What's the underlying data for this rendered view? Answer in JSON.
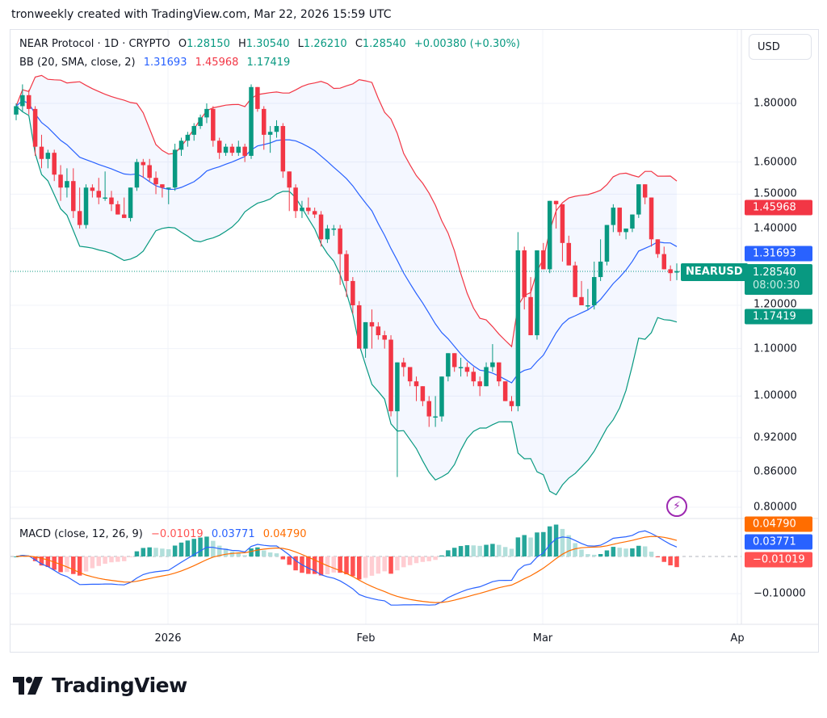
{
  "header": {
    "caption": "tronweekly created with TradingView.com, Mar 22, 2026 15:59 UTC"
  },
  "legend": {
    "symbol": "NEAR Protocol · 1D · CRYPTO",
    "open_label": "O",
    "open": "1.28150",
    "high_label": "H",
    "high": "1.30540",
    "low_label": "L",
    "low": "1.26210",
    "close_label": "C",
    "close": "1.28540",
    "change": "+0.00380 (+0.30%)",
    "bb_label": "BB (20, SMA, close, 2)",
    "bb_basis": "1.31693",
    "bb_upper": "1.45968",
    "bb_lower": "1.17419",
    "macd_label": "MACD (close, 12, 26, 9)",
    "macd_hist": "−0.01019",
    "macd_line": "0.03771",
    "macd_signal": "0.04790"
  },
  "toolbar": {
    "currency_button": "USD"
  },
  "price_axis": {
    "ticks": [
      "1.80000",
      "1.60000",
      "1.50000",
      "1.40000",
      "1.20000",
      "1.10000",
      "1.00000",
      "0.92000",
      "0.86000",
      "0.80000"
    ],
    "badges": {
      "bb_upper": "1.45968",
      "bb_basis": "1.31693",
      "last_price": "1.28540",
      "countdown": "08:00:30",
      "bb_lower": "1.17419"
    },
    "symbol_label": "NEARUSD"
  },
  "macd_axis": {
    "ticks": [
      "−0.10000"
    ],
    "badges": {
      "signal": "0.04790",
      "macd": "0.03771",
      "hist": "−0.01019"
    }
  },
  "time_axis": {
    "labels": [
      "2026",
      "Feb",
      "Mar",
      "Ap"
    ]
  },
  "branding": {
    "logo_text": "TradingView"
  },
  "colors": {
    "up": "#089981",
    "down": "#f23645",
    "bb_basis": "#2962ff",
    "bb_upper": "#f23645",
    "bb_lower": "#089981",
    "macd_line": "#2962ff",
    "signal_line": "#ff6d00",
    "hist_up_strong": "#26a69a",
    "hist_up_weak": "#b2dfdb",
    "hist_down_strong": "#ff5252",
    "hist_down_weak": "#ffcdd2"
  },
  "chart_data": [
    {
      "type": "candlestick",
      "title": "NEAR Protocol · 1D · CRYPTO",
      "xlabel": "",
      "ylabel": "USD",
      "y_scale": "log",
      "ylim": [
        0.78,
        2.0
      ],
      "x_ticks": [
        "2026",
        "Feb",
        "Mar",
        "Ap"
      ],
      "y_ticks": [
        1.8,
        1.6,
        1.5,
        1.4,
        1.2,
        1.1,
        1.0,
        0.92,
        0.86,
        0.8
      ],
      "ohlc": [
        [
          1.76,
          1.8,
          1.74,
          1.79
        ],
        [
          1.79,
          1.87,
          1.77,
          1.83
        ],
        [
          1.83,
          1.85,
          1.76,
          1.78
        ],
        [
          1.78,
          1.79,
          1.62,
          1.65
        ],
        [
          1.65,
          1.69,
          1.58,
          1.61
        ],
        [
          1.61,
          1.64,
          1.58,
          1.63
        ],
        [
          1.63,
          1.64,
          1.54,
          1.56
        ],
        [
          1.56,
          1.59,
          1.48,
          1.52
        ],
        [
          1.52,
          1.58,
          1.49,
          1.54
        ],
        [
          1.54,
          1.58,
          1.43,
          1.45
        ],
        [
          1.45,
          1.52,
          1.4,
          1.41
        ],
        [
          1.41,
          1.53,
          1.4,
          1.52
        ],
        [
          1.52,
          1.53,
          1.49,
          1.51
        ],
        [
          1.51,
          1.55,
          1.47,
          1.49
        ],
        [
          1.49,
          1.57,
          1.48,
          1.49
        ],
        [
          1.49,
          1.51,
          1.45,
          1.47
        ],
        [
          1.47,
          1.48,
          1.44,
          1.44
        ],
        [
          1.44,
          1.49,
          1.43,
          1.43
        ],
        [
          1.43,
          1.52,
          1.42,
          1.52
        ],
        [
          1.52,
          1.61,
          1.51,
          1.6
        ],
        [
          1.6,
          1.61,
          1.55,
          1.59
        ],
        [
          1.59,
          1.61,
          1.54,
          1.55
        ],
        [
          1.55,
          1.57,
          1.5,
          1.53
        ],
        [
          1.53,
          1.53,
          1.49,
          1.52
        ],
        [
          1.52,
          1.52,
          1.47,
          1.52
        ],
        [
          1.52,
          1.66,
          1.51,
          1.64
        ],
        [
          1.64,
          1.68,
          1.62,
          1.67
        ],
        [
          1.67,
          1.7,
          1.65,
          1.69
        ],
        [
          1.69,
          1.73,
          1.67,
          1.72
        ],
        [
          1.72,
          1.76,
          1.71,
          1.75
        ],
        [
          1.75,
          1.8,
          1.73,
          1.78
        ],
        [
          1.78,
          1.79,
          1.65,
          1.67
        ],
        [
          1.67,
          1.68,
          1.61,
          1.63
        ],
        [
          1.63,
          1.66,
          1.62,
          1.65
        ],
        [
          1.65,
          1.66,
          1.62,
          1.63
        ],
        [
          1.63,
          1.67,
          1.62,
          1.65
        ],
        [
          1.65,
          1.66,
          1.6,
          1.62
        ],
        [
          1.62,
          1.87,
          1.61,
          1.86
        ],
        [
          1.86,
          1.86,
          1.77,
          1.78
        ],
        [
          1.78,
          1.79,
          1.64,
          1.69
        ],
        [
          1.69,
          1.72,
          1.63,
          1.7
        ],
        [
          1.7,
          1.74,
          1.68,
          1.72
        ],
        [
          1.72,
          1.73,
          1.55,
          1.57
        ],
        [
          1.57,
          1.57,
          1.45,
          1.52
        ],
        [
          1.52,
          1.53,
          1.43,
          1.45
        ],
        [
          1.45,
          1.48,
          1.43,
          1.46
        ],
        [
          1.46,
          1.49,
          1.44,
          1.45
        ],
        [
          1.45,
          1.46,
          1.43,
          1.44
        ],
        [
          1.44,
          1.45,
          1.35,
          1.37
        ],
        [
          1.37,
          1.41,
          1.36,
          1.4
        ],
        [
          1.4,
          1.41,
          1.38,
          1.4
        ],
        [
          1.4,
          1.41,
          1.25,
          1.33
        ],
        [
          1.33,
          1.34,
          1.22,
          1.26
        ],
        [
          1.26,
          1.27,
          1.18,
          1.2
        ],
        [
          1.2,
          1.21,
          1.1,
          1.1
        ],
        [
          1.1,
          1.15,
          1.08,
          1.16
        ],
        [
          1.16,
          1.19,
          1.1,
          1.15
        ],
        [
          1.15,
          1.16,
          1.12,
          1.13
        ],
        [
          1.13,
          1.14,
          1.1,
          1.12
        ],
        [
          1.12,
          1.13,
          0.96,
          0.97
        ],
        [
          0.97,
          1.07,
          0.85,
          1.07
        ],
        [
          1.07,
          1.08,
          1.04,
          1.06
        ],
        [
          1.06,
          1.06,
          1.02,
          1.03
        ],
        [
          1.03,
          1.04,
          0.99,
          1.02
        ],
        [
          1.02,
          1.02,
          0.98,
          0.99
        ],
        [
          0.99,
          1.0,
          0.94,
          0.96
        ],
        [
          0.96,
          1.0,
          0.94,
          0.96
        ],
        [
          0.96,
          1.04,
          0.95,
          1.04
        ],
        [
          1.04,
          1.09,
          1.03,
          1.09
        ],
        [
          1.09,
          1.09,
          1.05,
          1.06
        ],
        [
          1.06,
          1.08,
          1.04,
          1.06
        ],
        [
          1.06,
          1.07,
          1.04,
          1.05
        ],
        [
          1.05,
          1.06,
          1.02,
          1.03
        ],
        [
          1.03,
          1.04,
          1.0,
          1.02
        ],
        [
          1.02,
          1.07,
          1.02,
          1.06
        ],
        [
          1.06,
          1.11,
          1.05,
          1.07
        ],
        [
          1.07,
          1.07,
          1.02,
          1.03
        ],
        [
          1.03,
          1.03,
          0.99,
          0.99
        ],
        [
          0.99,
          1.0,
          0.97,
          0.98
        ],
        [
          0.98,
          1.39,
          0.97,
          1.34
        ],
        [
          1.34,
          1.35,
          1.19,
          1.22
        ],
        [
          1.22,
          1.27,
          1.13,
          1.13
        ],
        [
          1.13,
          1.34,
          1.12,
          1.34
        ],
        [
          1.34,
          1.36,
          1.3,
          1.29
        ],
        [
          1.29,
          1.47,
          1.28,
          1.48
        ],
        [
          1.48,
          1.44,
          1.4,
          1.47
        ],
        [
          1.47,
          1.44,
          1.31,
          1.36
        ],
        [
          1.36,
          1.38,
          1.3,
          1.3
        ],
        [
          1.3,
          1.31,
          1.22,
          1.22
        ],
        [
          1.22,
          1.26,
          1.21,
          1.2
        ],
        [
          1.2,
          1.24,
          1.19,
          1.2
        ],
        [
          1.2,
          1.31,
          1.19,
          1.27
        ],
        [
          1.27,
          1.37,
          1.26,
          1.31
        ],
        [
          1.31,
          1.4,
          1.3,
          1.41
        ],
        [
          1.41,
          1.47,
          1.39,
          1.46
        ],
        [
          1.46,
          1.44,
          1.38,
          1.39
        ],
        [
          1.39,
          1.4,
          1.37,
          1.4
        ],
        [
          1.4,
          1.44,
          1.39,
          1.44
        ],
        [
          1.44,
          1.53,
          1.43,
          1.53
        ],
        [
          1.53,
          1.53,
          1.47,
          1.49
        ],
        [
          1.49,
          1.49,
          1.35,
          1.37
        ],
        [
          1.37,
          1.37,
          1.32,
          1.33
        ],
        [
          1.33,
          1.35,
          1.3,
          1.29
        ],
        [
          1.29,
          1.3,
          1.26,
          1.28
        ],
        [
          1.2815,
          1.3054,
          1.2621,
          1.2854
        ]
      ],
      "bollinger_bands": {
        "period": 20,
        "std": 2,
        "basis_last": 1.31693,
        "upper_last": 1.45968,
        "lower_last": 1.17419
      },
      "last_price": 1.2854
    },
    {
      "type": "bar+line",
      "title": "MACD (close, 12, 26, 9)",
      "series": [
        {
          "name": "Histogram",
          "last": -0.01019
        },
        {
          "name": "MACD",
          "last": 0.03771
        },
        {
          "name": "Signal",
          "last": 0.0479
        }
      ],
      "y_ticks": [
        -0.1
      ]
    }
  ]
}
